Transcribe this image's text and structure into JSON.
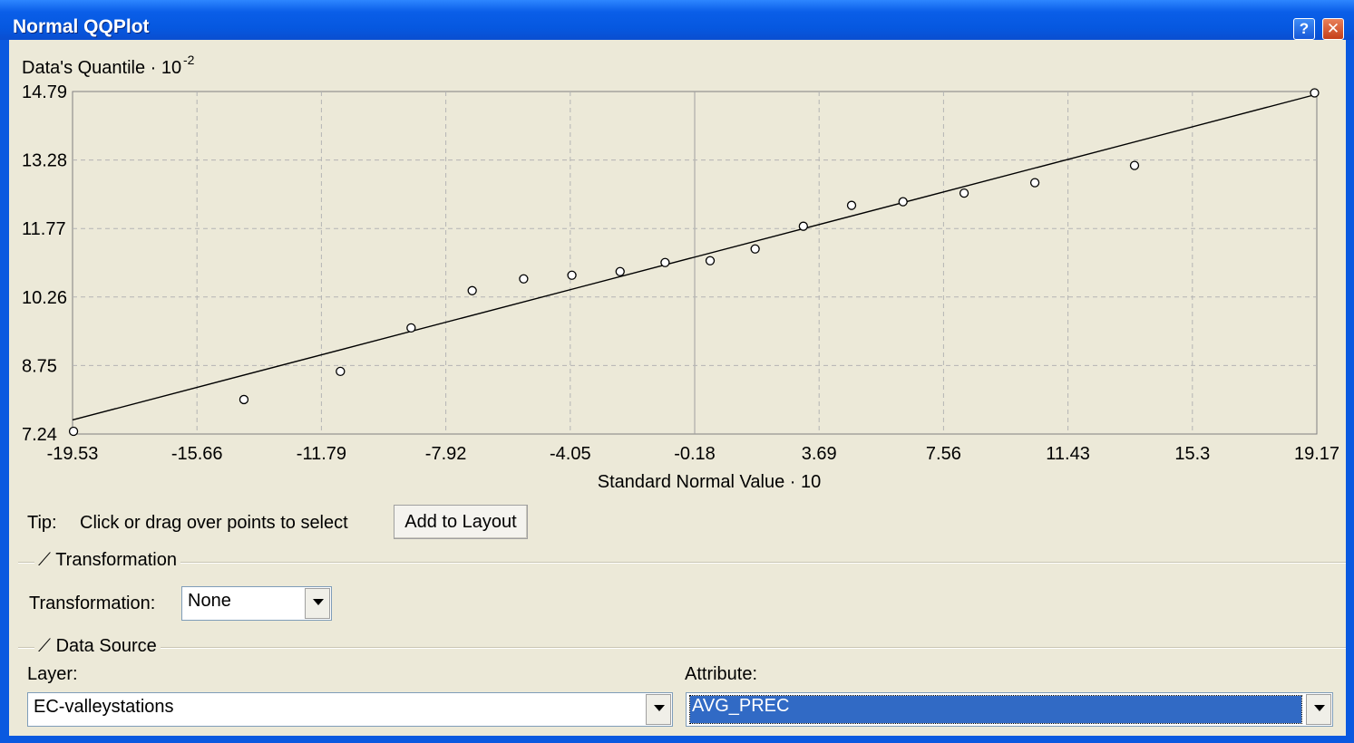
{
  "window": {
    "title": "Normal QQPlot",
    "help_label": "?",
    "close_label": "✕"
  },
  "chart_data": {
    "type": "scatter",
    "ylabel": "Data's Quantile · 10",
    "ylabel_exp": "-2",
    "xlabel": "Standard Normal Value · 10",
    "xlim": [
      -19.53,
      19.17
    ],
    "ylim": [
      7.24,
      14.79
    ],
    "x_ticks": [
      "-19.53",
      "-15.66",
      "-11.79",
      "-7.92",
      "-4.05",
      "-0.18",
      "3.69",
      "7.56",
      "11.43",
      "15.3",
      "19.17"
    ],
    "y_ticks": [
      "7.24",
      "8.75",
      "10.26",
      "11.77",
      "13.28",
      "14.79"
    ],
    "grid": true,
    "points": [
      {
        "x": -19.5,
        "y": 7.3
      },
      {
        "x": -14.2,
        "y": 8.0
      },
      {
        "x": -11.2,
        "y": 8.62
      },
      {
        "x": -9.0,
        "y": 9.58
      },
      {
        "x": -7.1,
        "y": 10.4
      },
      {
        "x": -5.5,
        "y": 10.66
      },
      {
        "x": -4.0,
        "y": 10.74
      },
      {
        "x": -2.5,
        "y": 10.82
      },
      {
        "x": -1.1,
        "y": 11.02
      },
      {
        "x": 0.3,
        "y": 11.06
      },
      {
        "x": 1.7,
        "y": 11.32
      },
      {
        "x": 3.2,
        "y": 11.82
      },
      {
        "x": 4.7,
        "y": 12.28
      },
      {
        "x": 6.3,
        "y": 12.36
      },
      {
        "x": 8.2,
        "y": 12.55
      },
      {
        "x": 10.4,
        "y": 12.78
      },
      {
        "x": 13.5,
        "y": 13.16
      },
      {
        "x": 19.1,
        "y": 14.76
      }
    ],
    "reference_line": {
      "x": [
        -19.53,
        19.17
      ],
      "y": [
        7.55,
        14.73
      ]
    }
  },
  "controls": {
    "tip_label": "Tip:",
    "tip_text": "Click or drag over points to select",
    "add_to_layout_label": "Add to Layout",
    "transformation_group": "Transformation",
    "transformation_label": "Transformation:",
    "transformation_value": "None",
    "data_source_group": "Data Source",
    "layer_label": "Layer:",
    "layer_value": "EC-valleystations",
    "attribute_label": "Attribute:",
    "attribute_value": "AVG_PREC"
  }
}
